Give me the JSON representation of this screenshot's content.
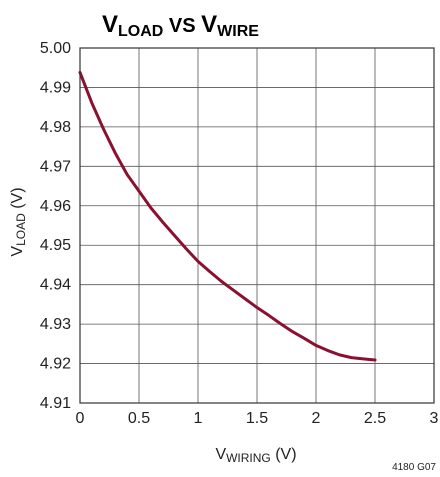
{
  "chart_data": {
    "type": "line",
    "title": {
      "main": "V",
      "main_sub": "LOAD",
      "mid": " VS ",
      "end": "V",
      "end_sub": "WIRE"
    },
    "xlabel": {
      "main": "V",
      "sub": "WIRING",
      "unit": " (V)"
    },
    "ylabel": {
      "main": "V",
      "sub": "LOAD",
      "unit": " (V)"
    },
    "xlim": [
      0,
      3
    ],
    "ylim": [
      4.91,
      5.0
    ],
    "xticks": [
      "0",
      "0.5",
      "1",
      "1.5",
      "2",
      "2.5",
      "3"
    ],
    "yticks": [
      "4.91",
      "4.92",
      "4.93",
      "4.94",
      "4.95",
      "4.96",
      "4.97",
      "4.98",
      "4.99",
      "5.00"
    ],
    "grid": true,
    "series": [
      {
        "color": "#8b1030",
        "x": [
          0,
          0.1,
          0.2,
          0.3,
          0.4,
          0.5,
          0.6,
          0.7,
          0.8,
          0.9,
          1.0,
          1.1,
          1.2,
          1.3,
          1.4,
          1.5,
          1.6,
          1.7,
          1.8,
          1.9,
          2.0,
          2.1,
          2.2,
          2.3,
          2.4,
          2.5
        ],
        "y": [
          4.9938,
          4.9861,
          4.9794,
          4.9733,
          4.9679,
          4.9637,
          4.9595,
          4.9559,
          4.9525,
          4.9491,
          4.9459,
          4.9433,
          4.9408,
          4.9386,
          4.9364,
          4.9342,
          4.9322,
          4.9301,
          4.9281,
          4.9264,
          4.9246,
          4.9233,
          4.9222,
          4.9215,
          4.9212,
          4.9209
        ]
      }
    ]
  },
  "figure_code": "4180 G07"
}
